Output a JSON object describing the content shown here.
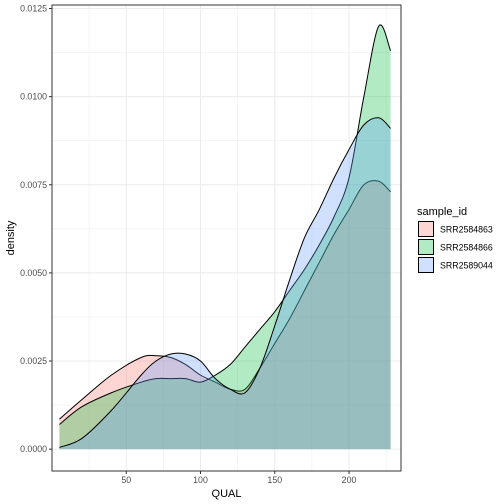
{
  "chart_data": {
    "type": "area",
    "subtype": "density",
    "xlabel": "QUAL",
    "ylabel": "density",
    "xlim": [
      0,
      235
    ],
    "ylim": [
      -0.00062,
      0.0126
    ],
    "x_ticks": [
      50,
      100,
      150,
      200
    ],
    "x_tick_labels": [
      "50",
      "100",
      "150",
      "200"
    ],
    "y_ticks": [
      0,
      0.0025,
      0.005,
      0.0075,
      0.01,
      0.0125
    ],
    "y_tick_labels": [
      "0.0000",
      "0.0025",
      "0.0050",
      "0.0075",
      "0.0100",
      "0.0125"
    ],
    "grid": true,
    "legend": {
      "title": "sample_id",
      "position": "right"
    },
    "series": [
      {
        "name": "SRR2584863",
        "color": "#F8766D",
        "x": [
          5,
          20,
          40,
          60,
          70,
          80,
          90,
          100,
          110,
          120,
          130,
          140,
          150,
          160,
          170,
          180,
          190,
          200,
          210,
          220,
          228
        ],
        "y": [
          0.00085,
          0.0014,
          0.0021,
          0.0026,
          0.00265,
          0.0026,
          0.0024,
          0.0021,
          0.0019,
          0.0017,
          0.0017,
          0.0023,
          0.003,
          0.0037,
          0.0045,
          0.0053,
          0.0061,
          0.0068,
          0.0075,
          0.0076,
          0.0073
        ]
      },
      {
        "name": "SRR2584866",
        "color": "#00BA38",
        "x": [
          5,
          20,
          40,
          60,
          70,
          80,
          90,
          100,
          110,
          120,
          130,
          140,
          150,
          160,
          170,
          180,
          190,
          200,
          210,
          220,
          228
        ],
        "y": [
          0.0007,
          0.0012,
          0.0016,
          0.0019,
          0.002,
          0.002,
          0.002,
          0.0019,
          0.0021,
          0.0024,
          0.0029,
          0.0034,
          0.0039,
          0.0045,
          0.0051,
          0.0058,
          0.0066,
          0.0077,
          0.01,
          0.012,
          0.0113
        ]
      },
      {
        "name": "SRR2589044",
        "color": "#619CFF",
        "x": [
          5,
          20,
          40,
          60,
          70,
          80,
          90,
          100,
          110,
          120,
          130,
          140,
          150,
          160,
          170,
          180,
          190,
          200,
          210,
          220,
          228
        ],
        "y": [
          5e-05,
          0.0003,
          0.0011,
          0.0021,
          0.0025,
          0.0027,
          0.0027,
          0.0025,
          0.002,
          0.0017,
          0.0016,
          0.0023,
          0.0035,
          0.0048,
          0.006,
          0.0068,
          0.0077,
          0.0085,
          0.0092,
          0.0094,
          0.0091
        ]
      }
    ]
  }
}
